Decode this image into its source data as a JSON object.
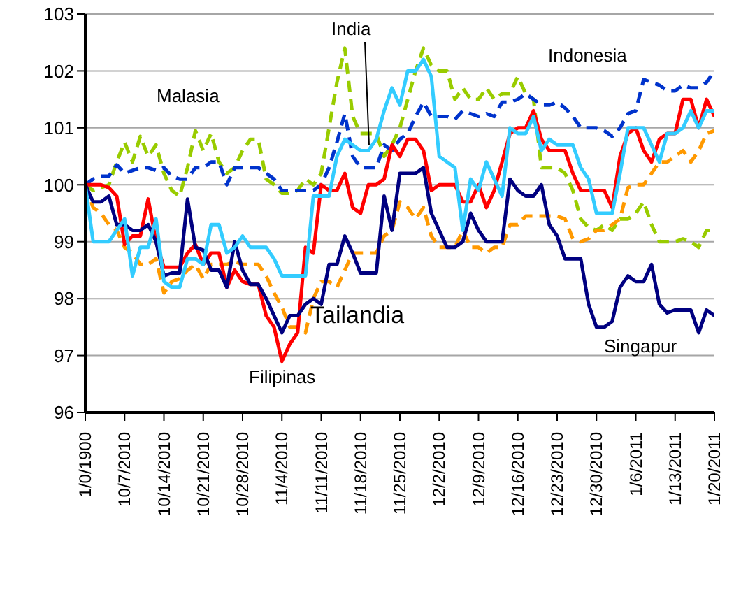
{
  "chart_data": {
    "type": "line",
    "categories": [
      "1/0/1900",
      null,
      null,
      null,
      null,
      "10/7/2010",
      null,
      null,
      null,
      null,
      "10/14/2010",
      null,
      null,
      null,
      null,
      "10/21/2010",
      null,
      null,
      null,
      null,
      "10/28/2010",
      null,
      null,
      null,
      null,
      "11/4/2010",
      null,
      null,
      null,
      null,
      "11/11/2010",
      null,
      null,
      null,
      null,
      "11/18/2010",
      null,
      null,
      null,
      null,
      "11/25/2010",
      null,
      null,
      null,
      null,
      "12/2/2010",
      null,
      null,
      null,
      null,
      "12/9/2010",
      null,
      null,
      null,
      null,
      "12/16/2010",
      null,
      null,
      null,
      null,
      "12/23/2010",
      null,
      null,
      null,
      null,
      "12/30/2010",
      null,
      null,
      null,
      null,
      "1/6/2011",
      null,
      null,
      null,
      null,
      "1/13/2011",
      null,
      null,
      null,
      null,
      "1/20/2011"
    ],
    "ylim": [
      96,
      103
    ],
    "yticks": [
      96,
      97,
      98,
      99,
      100,
      101,
      102,
      103
    ],
    "grid": "y",
    "series": [
      {
        "name": "Malasia",
        "color": "#99cc00",
        "line_style": "dashed",
        "values": [
          100,
          99.9,
          99.95,
          100.0,
          100.4,
          100.75,
          100.4,
          100.85,
          100.5,
          100.7,
          100.2,
          99.9,
          99.8,
          100.3,
          100.95,
          100.6,
          100.9,
          100.4,
          100.2,
          100.3,
          100.6,
          100.8,
          100.8,
          100.1,
          100.0,
          99.85,
          99.85,
          99.9,
          100.1,
          100.0,
          100.2,
          101.0,
          101.8,
          102.4,
          101.2,
          100.9,
          100.9,
          100.9,
          100.5,
          100.7,
          101.0,
          101.5,
          102.0,
          102.4,
          102.1,
          102.0,
          102.0,
          101.5,
          101.7,
          101.5,
          101.5,
          101.7,
          101.5,
          101.6,
          101.6,
          101.9,
          101.6,
          101.5,
          100.3,
          100.3,
          100.3,
          100.2,
          99.9,
          99.4,
          99.25,
          99.2,
          99.3,
          99.2,
          99.4,
          99.4,
          99.5,
          99.7,
          99.3,
          99.0,
          99.0,
          99.0,
          99.05,
          99.0,
          98.9,
          99.2,
          99.2
        ]
      },
      {
        "name": "Indonesia",
        "color": "#0033cc",
        "line_style": "dashed",
        "values": [
          100,
          100.1,
          100.15,
          100.15,
          100.35,
          100.2,
          100.25,
          100.3,
          100.3,
          100.25,
          100.3,
          100.15,
          100.1,
          100.1,
          100.3,
          100.3,
          100.4,
          100.4,
          100.0,
          100.3,
          100.3,
          100.3,
          100.3,
          100.2,
          100.1,
          99.9,
          99.9,
          99.9,
          99.9,
          99.9,
          100.0,
          100.3,
          100.75,
          101.25,
          100.5,
          100.3,
          100.3,
          100.3,
          100.7,
          100.6,
          100.8,
          100.9,
          101.2,
          101.45,
          101.2,
          101.2,
          101.2,
          101.15,
          101.3,
          101.25,
          101.2,
          101.25,
          101.2,
          101.45,
          101.45,
          101.5,
          101.6,
          101.5,
          101.4,
          101.4,
          101.45,
          101.35,
          101.2,
          101.0,
          101.0,
          101.0,
          100.95,
          100.85,
          101.0,
          101.25,
          101.3,
          101.85,
          101.8,
          101.75,
          101.65,
          101.65,
          101.75,
          101.7,
          101.7,
          101.8,
          102.0
        ]
      },
      {
        "name": "Tailandia",
        "color": "#ff9900",
        "line_style": "dashed",
        "values": [
          100,
          99.6,
          99.5,
          99.3,
          99.2,
          98.9,
          98.8,
          98.6,
          98.6,
          98.7,
          98.1,
          98.3,
          98.35,
          98.5,
          98.6,
          98.35,
          98.6,
          98.6,
          98.6,
          98.65,
          98.6,
          98.6,
          98.6,
          98.4,
          98.1,
          97.85,
          97.5,
          97.5,
          97.4,
          98.0,
          98.3,
          98.3,
          98.2,
          98.5,
          98.8,
          98.8,
          98.8,
          98.8,
          99.1,
          99.2,
          99.7,
          99.6,
          99.4,
          99.6,
          99.1,
          98.9,
          98.9,
          98.9,
          99.2,
          98.9,
          98.9,
          98.8,
          98.9,
          98.9,
          99.3,
          99.3,
          99.45,
          99.45,
          99.45,
          99.45,
          99.45,
          99.4,
          99.05,
          99.0,
          99.05,
          99.2,
          99.2,
          99.3,
          99.4,
          99.95,
          100.0,
          100.0,
          100.2,
          100.4,
          100.4,
          100.5,
          100.6,
          100.4,
          100.6,
          100.9,
          100.95
        ]
      },
      {
        "name": "Filipinas",
        "color": "#ff0000",
        "line_style": "solid",
        "values": [
          100,
          100,
          100,
          99.95,
          99.8,
          98.95,
          99.1,
          99.1,
          99.75,
          99.0,
          98.55,
          98.55,
          98.55,
          98.8,
          98.95,
          98.6,
          98.8,
          98.8,
          98.2,
          98.5,
          98.3,
          98.25,
          98.25,
          97.7,
          97.5,
          96.9,
          97.2,
          97.4,
          98.9,
          98.8,
          100.0,
          99.9,
          99.9,
          100.2,
          99.6,
          99.5,
          100.0,
          100.0,
          100.1,
          100.7,
          100.5,
          100.8,
          100.8,
          100.6,
          99.9,
          100.0,
          100.0,
          100.0,
          99.7,
          99.7,
          100.0,
          99.6,
          99.9,
          100.4,
          100.9,
          101.0,
          101.0,
          101.3,
          100.8,
          100.6,
          100.6,
          100.6,
          100.2,
          99.9,
          99.9,
          99.9,
          99.9,
          99.6,
          100.5,
          100.9,
          101.0,
          100.6,
          100.4,
          100.8,
          100.9,
          100.9,
          101.5,
          101.5,
          101.0,
          101.5,
          101.2
        ]
      },
      {
        "name": "Singapur",
        "color": "#000080",
        "line_style": "solid",
        "values": [
          100,
          99.7,
          99.7,
          99.8,
          99.3,
          99.3,
          99.2,
          99.2,
          99.3,
          99.0,
          98.4,
          98.45,
          98.45,
          99.75,
          98.9,
          98.85,
          98.5,
          98.5,
          98.2,
          99.0,
          98.5,
          98.25,
          98.25,
          98.0,
          97.7,
          97.4,
          97.7,
          97.7,
          97.9,
          98.0,
          97.9,
          98.6,
          98.6,
          99.1,
          98.8,
          98.45,
          98.45,
          98.45,
          99.8,
          99.2,
          100.2,
          100.2,
          100.2,
          100.3,
          99.5,
          99.2,
          98.9,
          98.9,
          99.0,
          99.5,
          99.2,
          99.0,
          99.0,
          99.0,
          100.1,
          99.9,
          99.8,
          99.8,
          100.0,
          99.3,
          99.1,
          98.7,
          98.7,
          98.7,
          97.9,
          97.5,
          97.5,
          97.6,
          98.2,
          98.4,
          98.3,
          98.3,
          98.6,
          97.9,
          97.75,
          97.8,
          97.8,
          97.8,
          97.4,
          97.8,
          97.7
        ]
      },
      {
        "name": "India",
        "color": "#33ccff",
        "line_style": "solid",
        "values": [
          100,
          99.0,
          99.0,
          99.0,
          99.2,
          99.4,
          98.4,
          98.9,
          98.9,
          99.4,
          98.3,
          98.2,
          98.2,
          98.7,
          98.7,
          98.6,
          99.3,
          99.3,
          98.8,
          98.9,
          99.1,
          98.9,
          98.9,
          98.9,
          98.7,
          98.4,
          98.4,
          98.4,
          98.4,
          99.8,
          99.8,
          99.8,
          100.5,
          100.8,
          100.7,
          100.6,
          100.6,
          100.8,
          101.3,
          101.7,
          101.4,
          102.0,
          102.0,
          102.2,
          101.9,
          100.5,
          100.4,
          100.3,
          99.2,
          100.1,
          99.9,
          100.4,
          100.1,
          99.8,
          101.0,
          100.9,
          100.9,
          101.2,
          100.6,
          100.8,
          100.7,
          100.7,
          100.7,
          100.3,
          100.1,
          99.5,
          99.5,
          99.5,
          100.2,
          101.0,
          101.0,
          101.0,
          100.7,
          100.4,
          100.9,
          100.9,
          101.0,
          101.3,
          101.0,
          101.3,
          101.3
        ]
      }
    ]
  }
}
